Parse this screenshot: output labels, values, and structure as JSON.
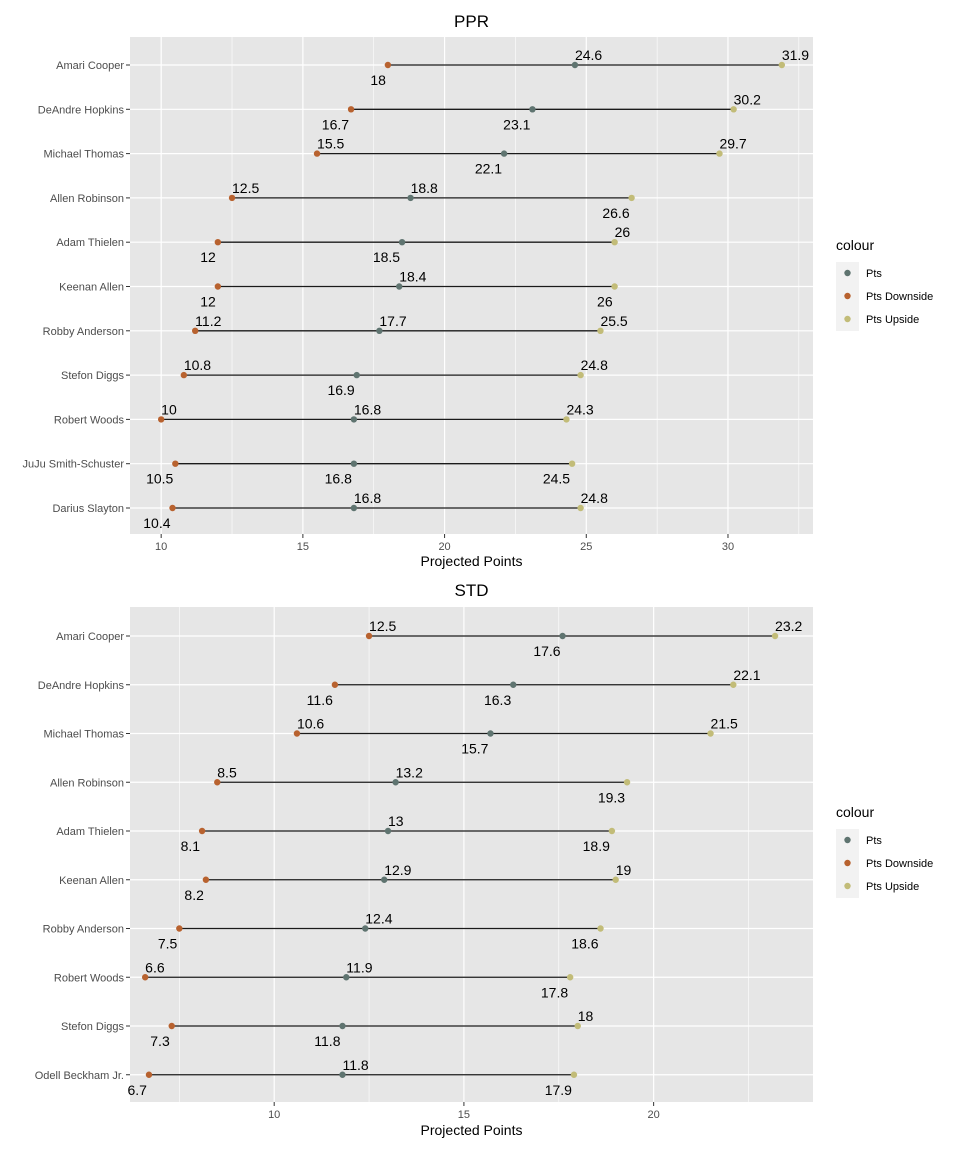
{
  "legend": {
    "title": "colour",
    "items": [
      "Pts",
      "Pts Downside",
      "Pts Upside"
    ]
  },
  "colors": {
    "pts": "#5f7470",
    "downside": "#b8622f",
    "upside": "#c2bc78",
    "panel_bg": "#e6e6e6",
    "grid": "#ffffff",
    "segment": "#1a1a1a"
  },
  "chart_data": [
    {
      "type": "dumbbell",
      "title": "PPR",
      "xlabel": "Projected Points",
      "xlim": [
        8.9,
        33.0
      ],
      "xticks": [
        10,
        15,
        20,
        25,
        30
      ],
      "grid": true,
      "legend_position": "right",
      "players": [
        "Amari Cooper",
        "DeAndre Hopkins",
        "Michael Thomas",
        "Allen Robinson",
        "Adam Thielen",
        "Keenan Allen",
        "Robby Anderson",
        "Stefon Diggs",
        "Robert Woods",
        "JuJu Smith-Schuster",
        "Darius Slayton"
      ],
      "series": [
        {
          "name": "Pts Downside",
          "values": [
            18,
            16.7,
            15.5,
            12.5,
            12,
            12,
            11.2,
            10.8,
            10,
            10.5,
            10.4
          ]
        },
        {
          "name": "Pts",
          "values": [
            24.6,
            23.1,
            22.1,
            18.8,
            18.5,
            18.4,
            17.7,
            16.9,
            16.8,
            16.8,
            16.8
          ]
        },
        {
          "name": "Pts Upside",
          "values": [
            31.9,
            30.2,
            29.7,
            26.6,
            26,
            26,
            25.5,
            24.8,
            24.3,
            24.5,
            24.8
          ]
        }
      ],
      "label_above": [
        [
          "pts",
          "upside"
        ],
        [
          "upside"
        ],
        [
          "downside",
          "upside"
        ],
        [
          "downside",
          "pts"
        ],
        [
          "upside"
        ],
        [
          "pts"
        ],
        [
          "downside",
          "pts",
          "upside"
        ],
        [
          "downside",
          "upside"
        ],
        [
          "downside",
          "pts",
          "upside"
        ],
        [],
        [
          "pts",
          "upside"
        ]
      ]
    },
    {
      "type": "dumbbell",
      "title": "STD",
      "xlabel": "Projected Points",
      "xlim": [
        6.2,
        24.2
      ],
      "xticks": [
        10,
        15,
        20
      ],
      "grid": true,
      "legend_position": "right",
      "players": [
        "Amari Cooper",
        "DeAndre Hopkins",
        "Michael Thomas",
        "Allen Robinson",
        "Adam Thielen",
        "Keenan Allen",
        "Robby Anderson",
        "Robert Woods",
        "Stefon Diggs",
        "Odell Beckham Jr."
      ],
      "series": [
        {
          "name": "Pts Downside",
          "values": [
            12.5,
            11.6,
            10.6,
            8.5,
            8.1,
            8.2,
            7.5,
            6.6,
            7.3,
            6.7
          ]
        },
        {
          "name": "Pts",
          "values": [
            17.6,
            16.3,
            15.7,
            13.2,
            13,
            12.9,
            12.4,
            11.9,
            11.8,
            11.8
          ]
        },
        {
          "name": "Pts Upside",
          "values": [
            23.2,
            22.1,
            21.5,
            19.3,
            18.9,
            19,
            18.6,
            17.8,
            18,
            17.9
          ]
        }
      ],
      "label_above": [
        [
          "downside",
          "upside"
        ],
        [
          "upside"
        ],
        [
          "downside",
          "upside"
        ],
        [
          "downside",
          "pts"
        ],
        [
          "pts"
        ],
        [
          "pts",
          "upside"
        ],
        [
          "pts"
        ],
        [
          "downside",
          "pts"
        ],
        [
          "upside"
        ],
        [
          "pts"
        ]
      ]
    }
  ]
}
